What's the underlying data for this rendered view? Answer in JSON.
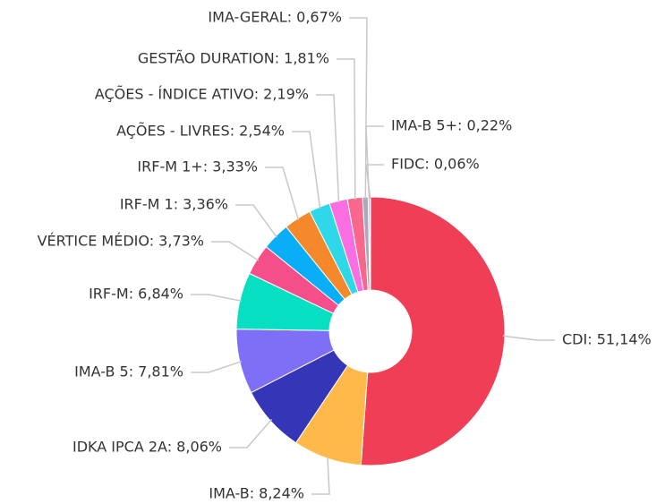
{
  "chart_data": {
    "type": "donut",
    "values": [
      51.14,
      8.24,
      8.06,
      7.81,
      6.84,
      3.73,
      3.36,
      3.33,
      2.54,
      2.19,
      1.81,
      0.67,
      0.22,
      0.06
    ],
    "value_labels": [
      "CDI: 51,14%",
      "IMA-B: 8,24%",
      "IDKA IPCA 2A: 8,06%",
      "IMA-B 5: 7,81%",
      "IRF-M: 6,84%",
      "VÉRTICE MÉDIO: 3,73%",
      "IRF-M 1: 3,36%",
      "IRF-M 1+: 3,33%",
      "AÇÕES - LIVRES: 2,54%",
      "AÇÕES - ÍNDICE ATIVO: 2,19%",
      "GESTÃO DURATION: 1,81%",
      "IMA-GERAL: 0,67%",
      "IMA-B 5+: 0,22%",
      "FIDC: 0,06%"
    ],
    "colors": [
      "#ef3e55",
      "#ffb94a",
      "#3535b8",
      "#7f6ff7",
      "#06dfc1",
      "#f54e8a",
      "#0aaef7",
      "#f5882a",
      "#2ed8e8",
      "#f96ee0",
      "#f7688c",
      "#a9a9b8",
      "#b8b8e6",
      "#cfcfcf"
    ]
  }
}
